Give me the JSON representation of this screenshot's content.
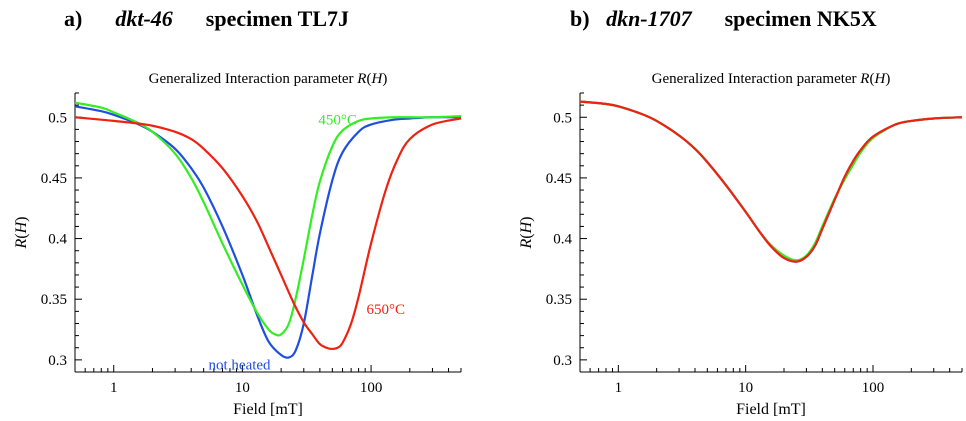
{
  "panels": [
    {
      "letter": "a)",
      "sample": "dkt-46",
      "specimen": "specimen TL7J"
    },
    {
      "letter": "b)",
      "sample": "dkn-1707",
      "specimen": "specimen NK5X"
    }
  ],
  "chart_data": [
    {
      "type": "line",
      "title": "Generalized Interaction parameter R(H)",
      "xlabel": "Field [mT]",
      "ylabel": "R(H)",
      "xscale": "log",
      "xlim": [
        0.5,
        500
      ],
      "ylim": [
        0.29,
        0.52
      ],
      "xticks": [
        {
          "value": 1,
          "label": "1"
        },
        {
          "value": 10,
          "label": "10"
        },
        {
          "value": 100,
          "label": "100"
        }
      ],
      "yticks": [
        {
          "value": 0.3,
          "label": "0.3"
        },
        {
          "value": 0.35,
          "label": "0.35"
        },
        {
          "value": 0.4,
          "label": "0.4"
        },
        {
          "value": 0.45,
          "label": "0.45"
        },
        {
          "value": 0.5,
          "label": "0.5"
        }
      ],
      "grid": false,
      "series": [
        {
          "name": "not heated",
          "color": "#1f4fe0",
          "x": [
            0.5,
            0.8,
            1,
            1.5,
            2,
            3,
            4,
            5,
            7,
            10,
            13,
            16,
            20,
            23,
            26,
            30,
            35,
            40,
            50,
            60,
            80,
            100,
            150,
            200,
            300,
            500
          ],
          "y": [
            0.509,
            0.505,
            0.502,
            0.495,
            0.488,
            0.474,
            0.458,
            0.442,
            0.41,
            0.37,
            0.337,
            0.315,
            0.304,
            0.302,
            0.308,
            0.33,
            0.37,
            0.404,
            0.448,
            0.471,
            0.488,
            0.494,
            0.498,
            0.499,
            0.5,
            0.5
          ]
        },
        {
          "name": "450°C",
          "color": "#33ee22",
          "x": [
            0.5,
            0.8,
            1,
            1.5,
            2,
            3,
            4,
            5,
            7,
            10,
            13,
            16,
            18,
            20,
            23,
            26,
            30,
            35,
            40,
            50,
            60,
            80,
            100,
            150,
            200,
            300,
            500
          ],
          "y": [
            0.512,
            0.508,
            0.504,
            0.496,
            0.488,
            0.47,
            0.45,
            0.43,
            0.396,
            0.362,
            0.339,
            0.325,
            0.321,
            0.321,
            0.33,
            0.351,
            0.383,
            0.42,
            0.447,
            0.476,
            0.489,
            0.497,
            0.499,
            0.5,
            0.5,
            0.5,
            0.501
          ]
        },
        {
          "name": "650°C",
          "color": "#ee2211",
          "x": [
            0.5,
            0.8,
            1,
            1.5,
            2,
            3,
            4,
            5,
            7,
            10,
            13,
            16,
            20,
            25,
            30,
            35,
            40,
            45,
            50,
            55,
            60,
            70,
            80,
            100,
            130,
            160,
            200,
            300,
            500
          ],
          "y": [
            0.5,
            0.498,
            0.497,
            0.495,
            0.493,
            0.488,
            0.482,
            0.474,
            0.458,
            0.435,
            0.414,
            0.393,
            0.37,
            0.347,
            0.331,
            0.321,
            0.313,
            0.31,
            0.309,
            0.31,
            0.314,
            0.33,
            0.352,
            0.396,
            0.44,
            0.465,
            0.482,
            0.494,
            0.499
          ]
        }
      ],
      "annotations": [
        {
          "text": "450°C",
          "color": "#33ee22",
          "x": 55,
          "y": 0.494,
          "anchor": "middle"
        },
        {
          "text": "650°C",
          "color": "#ee2211",
          "x": 130,
          "y": 0.338,
          "anchor": "middle"
        },
        {
          "text": "not heated",
          "color": "#1f4fe0",
          "x": 9.5,
          "y": 0.292,
          "anchor": "middle"
        }
      ]
    },
    {
      "type": "line",
      "title": "Generalized Interaction parameter R(H)",
      "xlabel": "Field [mT]",
      "ylabel": "R(H)",
      "xscale": "log",
      "xlim": [
        0.5,
        500
      ],
      "ylim": [
        0.29,
        0.52
      ],
      "xticks": [
        {
          "value": 1,
          "label": "1"
        },
        {
          "value": 10,
          "label": "10"
        },
        {
          "value": 100,
          "label": "100"
        }
      ],
      "yticks": [
        {
          "value": 0.3,
          "label": "0.3"
        },
        {
          "value": 0.35,
          "label": "0.35"
        },
        {
          "value": 0.4,
          "label": "0.4"
        },
        {
          "value": 0.45,
          "label": "0.45"
        },
        {
          "value": 0.5,
          "label": "0.5"
        }
      ],
      "grid": false,
      "series": [
        {
          "color": "#1f4fe0",
          "x": [
            0.5,
            0.8,
            1,
            1.5,
            2,
            3,
            4,
            5,
            7,
            10,
            13,
            16,
            20,
            25,
            30,
            35,
            40,
            50,
            60,
            70,
            80,
            100,
            150,
            200,
            300,
            500
          ],
          "y": [
            0.513,
            0.511,
            0.509,
            0.503,
            0.497,
            0.485,
            0.474,
            0.463,
            0.444,
            0.422,
            0.405,
            0.393,
            0.384,
            0.381,
            0.385,
            0.394,
            0.408,
            0.432,
            0.451,
            0.464,
            0.473,
            0.484,
            0.494,
            0.497,
            0.499,
            0.5
          ]
        },
        {
          "color": "#33ee22",
          "x": [
            0.5,
            0.8,
            1,
            1.5,
            2,
            3,
            4,
            5,
            7,
            10,
            13,
            16,
            20,
            25,
            30,
            35,
            40,
            50,
            60,
            70,
            80,
            100,
            150,
            200,
            300,
            500
          ],
          "y": [
            0.513,
            0.511,
            0.509,
            0.503,
            0.497,
            0.485,
            0.474,
            0.463,
            0.444,
            0.422,
            0.405,
            0.394,
            0.386,
            0.382,
            0.386,
            0.396,
            0.41,
            0.433,
            0.449,
            0.461,
            0.471,
            0.483,
            0.494,
            0.497,
            0.499,
            0.5
          ]
        },
        {
          "color": "#ee2211",
          "x": [
            0.5,
            0.8,
            1,
            1.5,
            2,
            3,
            4,
            5,
            7,
            10,
            13,
            16,
            20,
            25,
            30,
            35,
            40,
            50,
            60,
            70,
            80,
            100,
            150,
            200,
            300,
            500
          ],
          "y": [
            0.513,
            0.511,
            0.509,
            0.503,
            0.497,
            0.485,
            0.474,
            0.463,
            0.444,
            0.422,
            0.405,
            0.393,
            0.384,
            0.381,
            0.385,
            0.394,
            0.408,
            0.432,
            0.451,
            0.464,
            0.473,
            0.484,
            0.494,
            0.497,
            0.499,
            0.5
          ]
        }
      ],
      "annotations": []
    }
  ]
}
